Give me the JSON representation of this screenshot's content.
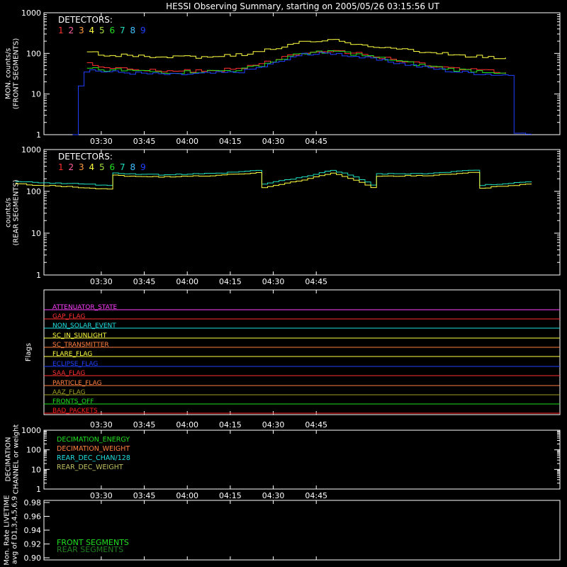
{
  "title": "HESSI Observing Summary, starting on 2005/05/26 03:15:56 UT",
  "colors": {
    "d1": "#ff3030",
    "d2": "#ff5f9f",
    "d3": "#ff9f3f",
    "d4": "#ffff40",
    "d5": "#9fdf3f",
    "d6": "#20e020",
    "d7": "#20e0c0",
    "d8": "#40c0ff",
    "d9": "#2040ff"
  },
  "chart_data": [
    {
      "type": "line",
      "panel": "front",
      "ylabel": "MON. counts/s\n(FRONT SEGMENTS)",
      "yscale": "log",
      "ylim": [
        1,
        1000
      ],
      "xlim_min": [
        10,
        56
      ],
      "x_ticks": [
        "03:30",
        "03:45",
        "04:00",
        "04:15",
        "04:30",
        "04:45"
      ],
      "y_ticks": [
        "1",
        "10",
        "100",
        "1000"
      ],
      "legend_title": "DETECTORS:",
      "legend_items": [
        "1",
        "2",
        "3",
        "4",
        "5",
        "6",
        "7",
        "8",
        "9"
      ],
      "on_interval_min": [
        25,
        72
      ],
      "series": [
        {
          "name": "1",
          "color": "d1",
          "x": [
            25,
            30,
            45,
            55,
            65,
            75,
            80,
            85,
            90,
            95,
            100,
            110,
            125,
            140,
            152,
            168,
            172
          ],
          "y": [
            55,
            45,
            38,
            36,
            38,
            40,
            45,
            55,
            68,
            88,
            110,
            120,
            82,
            55,
            42,
            35,
            35
          ]
        },
        {
          "name": "4",
          "color": "d4",
          "x": [
            25,
            30,
            45,
            55,
            65,
            75,
            80,
            85,
            90,
            95,
            100,
            110,
            125,
            140,
            152,
            168,
            172
          ],
          "y": [
            105,
            95,
            82,
            80,
            84,
            88,
            95,
            112,
            135,
            160,
            190,
            210,
            150,
            110,
            92,
            78,
            78
          ]
        },
        {
          "name": "6",
          "color": "d6",
          "x": [
            25,
            30,
            45,
            55,
            65,
            75,
            80,
            85,
            90,
            95,
            100,
            110,
            125,
            140,
            152,
            168,
            172
          ],
          "y": [
            45,
            40,
            36,
            34,
            36,
            38,
            42,
            52,
            65,
            82,
            102,
            115,
            78,
            52,
            40,
            34,
            34
          ]
        },
        {
          "name": "9",
          "color": "d9",
          "x": [
            20,
            25,
            30,
            45,
            55,
            65,
            75,
            80,
            85,
            90,
            95,
            100,
            110,
            125,
            140,
            152,
            168,
            172,
            173,
            180
          ],
          "y": [
            1,
            40,
            36,
            32,
            30,
            32,
            34,
            38,
            46,
            58,
            74,
            92,
            102,
            70,
            48,
            36,
            30,
            30,
            1,
            1
          ]
        }
      ]
    },
    {
      "type": "line",
      "panel": "rear",
      "ylabel": "counts/s\n(REAR SEGMENTS)",
      "yscale": "log",
      "ylim": [
        1,
        1000
      ],
      "x_ticks": [
        "03:30",
        "03:45",
        "04:00",
        "04:15",
        "04:30",
        "04:45"
      ],
      "y_ticks": [
        "1",
        "10",
        "100",
        "1000"
      ],
      "legend_title": "DETECTORS:",
      "legend_items": [
        "1",
        "2",
        "3",
        "4",
        "5",
        "6",
        "7",
        "8",
        "9"
      ],
      "series": [
        {
          "name": "7",
          "color": "d7",
          "x": [
            0,
            33,
            34,
            50,
            70,
            85,
            86,
            100,
            110,
            125,
            126,
            145,
            161,
            162,
            180
          ],
          "y": [
            170,
            140,
            270,
            250,
            270,
            320,
            150,
            220,
            320,
            130,
            260,
            270,
            330,
            140,
            170
          ]
        },
        {
          "name": "4",
          "color": "d4",
          "x": [
            0,
            33,
            34,
            50,
            70,
            85,
            86,
            100,
            110,
            125,
            126,
            145,
            161,
            162,
            180
          ],
          "y": [
            150,
            110,
            240,
            220,
            240,
            280,
            120,
            190,
            270,
            110,
            230,
            240,
            290,
            120,
            150
          ]
        }
      ]
    },
    {
      "type": "step",
      "panel": "flags",
      "ylabel": "Flags",
      "flags": [
        {
          "label": "ATTENUATOR_STATE",
          "color": "#ff40ff"
        },
        {
          "label": "GAP_FLAG",
          "color": "#ff3030"
        },
        {
          "label": "NON_SOLAR_EVENT",
          "color": "#20e0e0"
        },
        {
          "label": "SC_IN_SUNLIGHT",
          "color": "#ffff40"
        },
        {
          "label": "SC_TRANSMITTER",
          "color": "#ff8040"
        },
        {
          "label": "FLARE_FLAG",
          "color": "#ffff40"
        },
        {
          "label": "ECLIPSE_FLAG",
          "color": "#2040ff"
        },
        {
          "label": "SAA_FLAG",
          "color": "#ff3030"
        },
        {
          "label": "PARTICLE_FLAG",
          "color": "#ff8040"
        },
        {
          "label": "AAZ_FLAG",
          "color": "#9f9f20"
        },
        {
          "label": "FRONTS_OFF",
          "color": "#20e020"
        },
        {
          "label": "BAD_PACKETS",
          "color": "#ff2020"
        }
      ]
    },
    {
      "type": "step",
      "panel": "decimation",
      "ylabel": "DECIMATION\nCHANNEL or weight",
      "yscale": "log",
      "y_ticks": [
        "1",
        "10",
        "100",
        "1000"
      ],
      "legend_items": [
        {
          "label": "DECIMATION_ENERGY",
          "color": "#20e020"
        },
        {
          "label": "DECIMATION_WEIGHT",
          "color": "#ff8040"
        },
        {
          "label": "REAR_DEC_CHAN/128",
          "color": "#20e0e0"
        },
        {
          "label": "REAR_DEC_WEIGHT",
          "color": "#c0c060"
        }
      ]
    },
    {
      "type": "line",
      "panel": "livetime",
      "ylabel": "Mon. Rate LIVETIME\navg of D1,3,4,5,6,9",
      "ylim": [
        0.9,
        0.98
      ],
      "y_ticks": [
        "0.90",
        "0.92",
        "0.94",
        "0.96",
        "0.98"
      ],
      "legend_items": [
        {
          "label": "FRONT SEGMENTS",
          "color": "#20e020"
        },
        {
          "label": "REAR SEGMENTS",
          "color": "#208020"
        }
      ]
    }
  ]
}
